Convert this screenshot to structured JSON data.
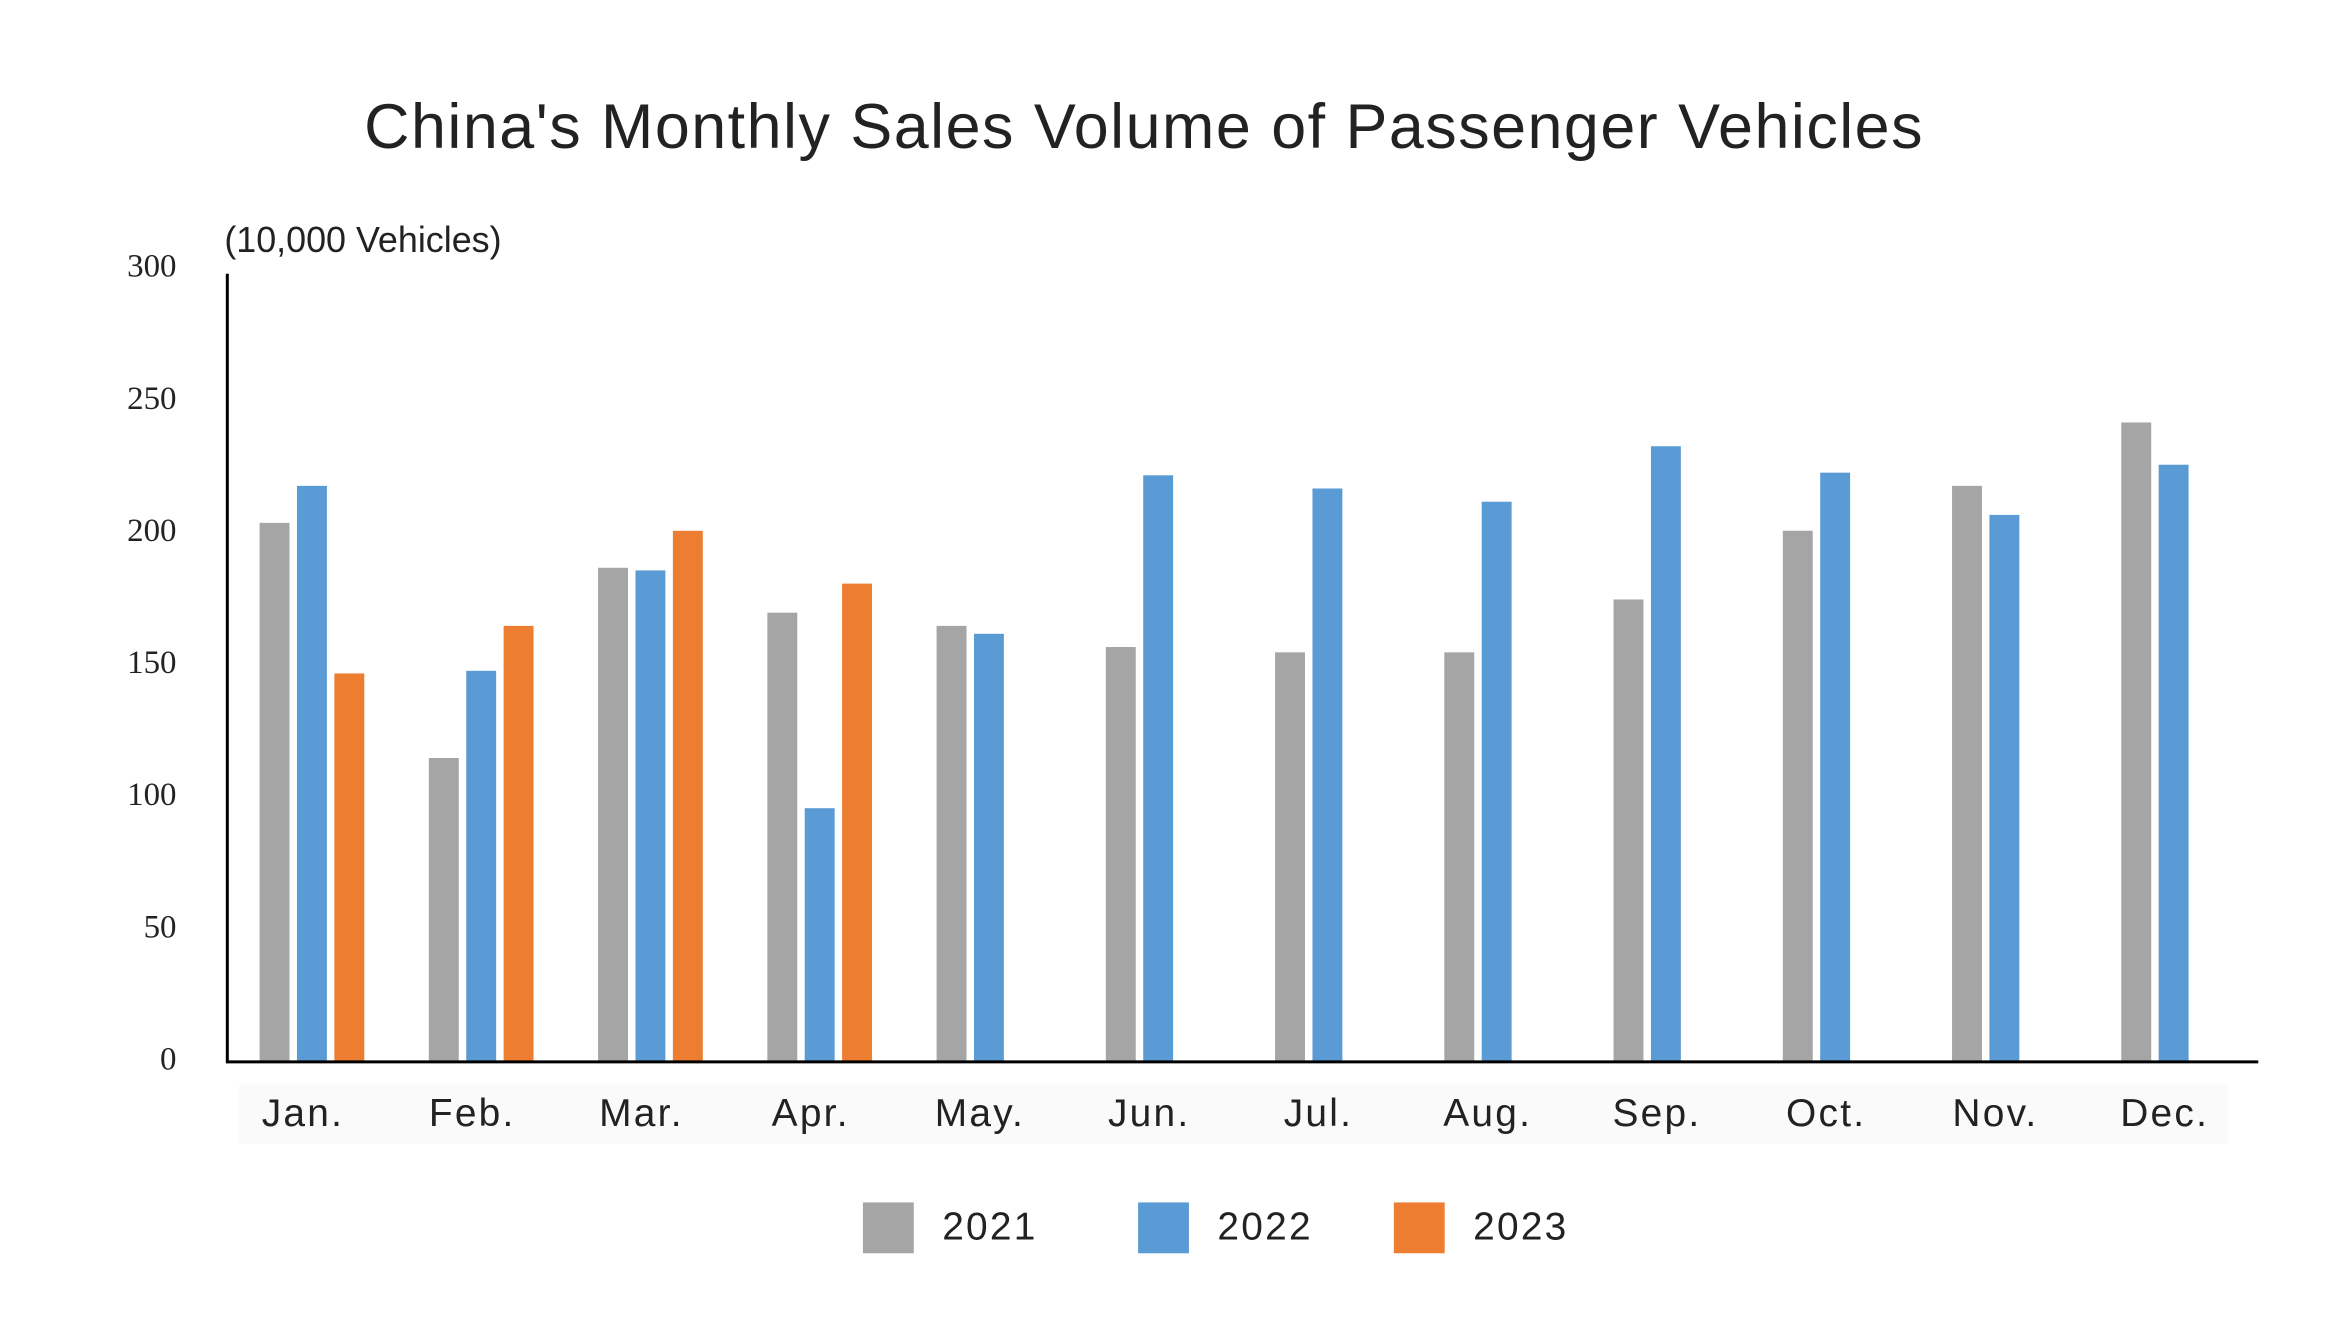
{
  "chart_data": {
    "type": "bar",
    "title": "China's Monthly Sales Volume of Passenger Vehicles",
    "y_axis_label": "(10,000 Vehicles)",
    "categories": [
      "Jan.",
      "Feb.",
      "Mar.",
      "Apr.",
      "May.",
      "Jun.",
      "Jul.",
      "Aug.",
      "Sep.",
      "Oct.",
      "Nov.",
      "Dec."
    ],
    "series": [
      {
        "name": "2021",
        "color": "#a5a5a5",
        "values": [
          204,
          115,
          187,
          170,
          165,
          157,
          155,
          155,
          175,
          201,
          218,
          242
        ]
      },
      {
        "name": "2022",
        "color": "#5b9bd5",
        "values": [
          218,
          148,
          186,
          96,
          162,
          222,
          217,
          212,
          233,
          223,
          207,
          226
        ]
      },
      {
        "name": "2023",
        "color": "#ed7d31",
        "values": [
          147,
          165,
          201,
          181,
          null,
          null,
          null,
          null,
          null,
          null,
          null,
          null
        ]
      }
    ],
    "ylim": [
      0,
      300
    ],
    "yticks": [
      0,
      50,
      100,
      150,
      200,
      250,
      300
    ],
    "grid": false
  }
}
